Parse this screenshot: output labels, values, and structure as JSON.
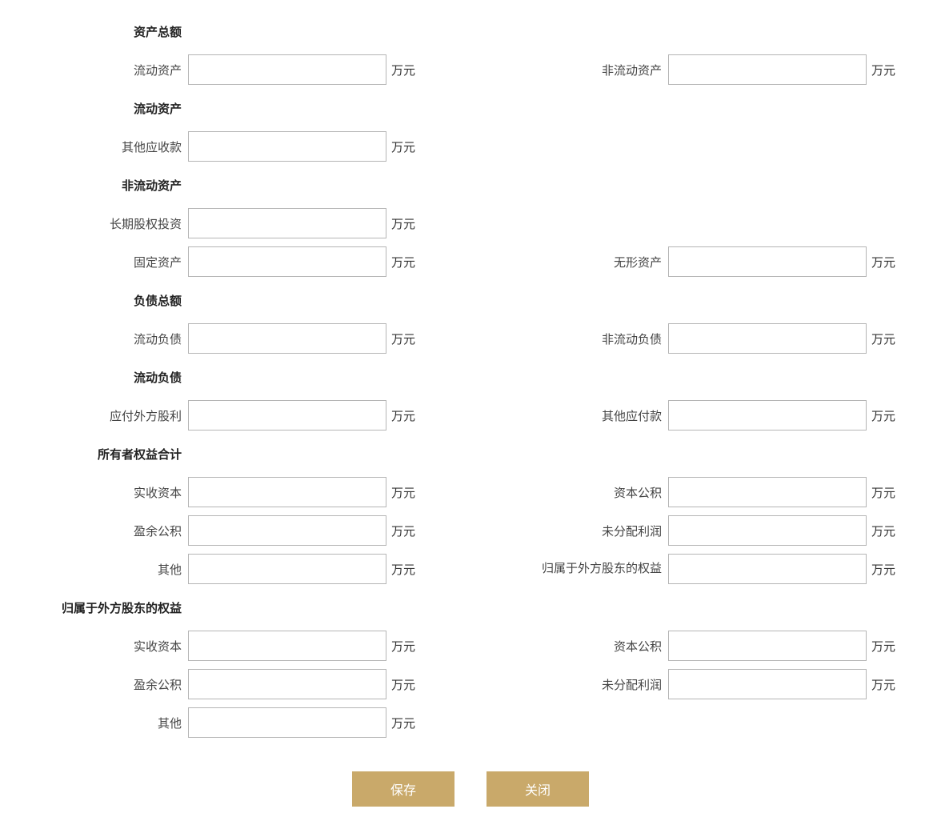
{
  "unit": "万元",
  "sections": {
    "total_assets": {
      "header": "资产总额",
      "current_assets_label": "流动资产",
      "non_current_assets_label": "非流动资产"
    },
    "current_assets": {
      "header": "流动资产",
      "other_receivables_label": "其他应收款"
    },
    "non_current_assets": {
      "header": "非流动资产",
      "long_term_equity_label": "长期股权投资",
      "fixed_assets_label": "固定资产",
      "intangible_assets_label": "无形资产"
    },
    "total_liabilities": {
      "header": "负债总额",
      "current_liabilities_label": "流动负债",
      "non_current_liabilities_label": "非流动负债"
    },
    "current_liabilities": {
      "header": "流动负债",
      "dividends_payable_foreign_label": "应付外方股利",
      "other_payables_label": "其他应付款"
    },
    "owners_equity": {
      "header": "所有者权益合计",
      "paid_in_capital_label": "实收资本",
      "capital_reserve_label": "资本公积",
      "surplus_reserve_label": "盈余公积",
      "undistributed_profit_label": "未分配利润",
      "other_label": "其他",
      "foreign_equity_label": "归属于外方股东的权益"
    },
    "foreign_equity": {
      "header": "归属于外方股东的权益",
      "paid_in_capital_label": "实收资本",
      "capital_reserve_label": "资本公积",
      "surplus_reserve_label": "盈余公积",
      "undistributed_profit_label": "未分配利润",
      "other_label": "其他"
    }
  },
  "buttons": {
    "save": "保存",
    "close": "关闭"
  },
  "colors": {
    "button_bg": "#c9a96a",
    "button_text": "#ffffff",
    "input_border": "#b5b5b5",
    "text": "#333333"
  }
}
